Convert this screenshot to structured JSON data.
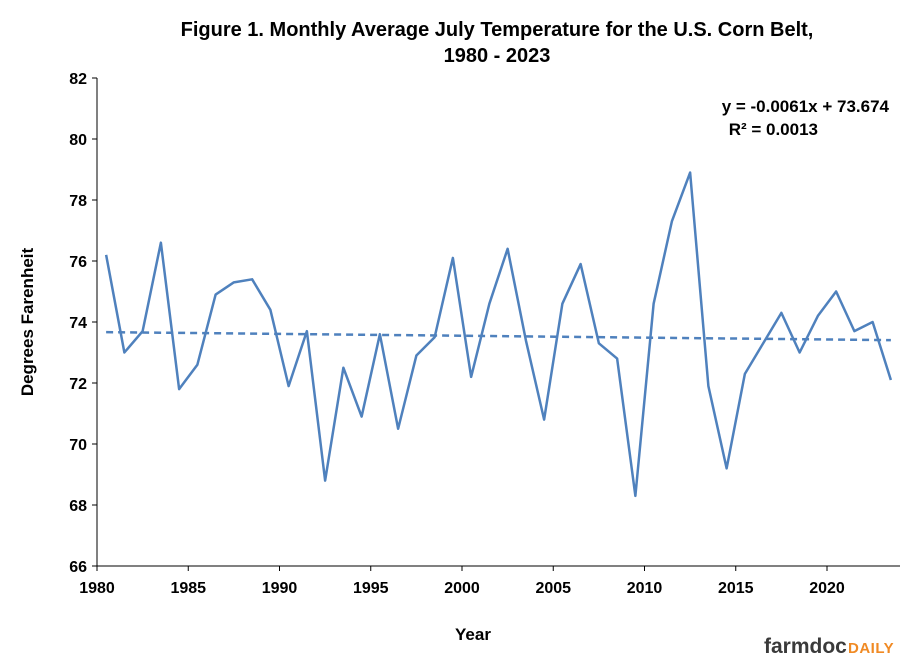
{
  "chart_data": {
    "type": "line",
    "title_lines": [
      "Figure  1. Monthly  Average  July  Temperature  for  the  U.S.  Corn  Belt,",
      "1980  -  2023"
    ],
    "xlabel": "Year",
    "ylabel": "Degrees Farenheit",
    "xlim": [
      1980,
      2024
    ],
    "ylim": [
      66,
      82
    ],
    "x_ticks": [
      1980,
      1985,
      1990,
      1995,
      2000,
      2005,
      2010,
      2015,
      2020
    ],
    "y_ticks": [
      66,
      68,
      70,
      72,
      74,
      76,
      78,
      80,
      82
    ],
    "grid": false,
    "legend": "none",
    "colors": {
      "series": "#4f81bd",
      "axis": "#000000"
    },
    "x": [
      1980,
      1981,
      1982,
      1983,
      1984,
      1985,
      1986,
      1987,
      1988,
      1989,
      1990,
      1991,
      1992,
      1993,
      1994,
      1995,
      1996,
      1997,
      1998,
      1999,
      2000,
      2001,
      2002,
      2003,
      2004,
      2005,
      2006,
      2007,
      2008,
      2009,
      2010,
      2011,
      2012,
      2013,
      2014,
      2015,
      2016,
      2017,
      2018,
      2019,
      2020,
      2021,
      2022,
      2023
    ],
    "series": [
      {
        "values": [
          76.2,
          73.0,
          73.7,
          76.6,
          71.8,
          72.6,
          74.9,
          75.3,
          75.4,
          74.4,
          71.9,
          73.7,
          68.8,
          72.5,
          70.9,
          73.6,
          70.5,
          72.9,
          73.5,
          76.1,
          72.2,
          74.6,
          76.4,
          73.4,
          70.8,
          74.6,
          75.9,
          73.3,
          72.8,
          68.3,
          74.6,
          77.3,
          78.9,
          71.9,
          69.2,
          72.3,
          73.3,
          74.3,
          73.0,
          74.2,
          75.0,
          73.7,
          74.0,
          72.1
        ]
      }
    ],
    "trendline": {
      "slope": -0.0061,
      "intercept": 73.674,
      "style": "dashed",
      "equation": "y = -0.0061x + 73.674",
      "r_squared": "R² = 0.0013"
    },
    "brand": {
      "part1": "farmdoc",
      "part2": "DAILY"
    }
  }
}
